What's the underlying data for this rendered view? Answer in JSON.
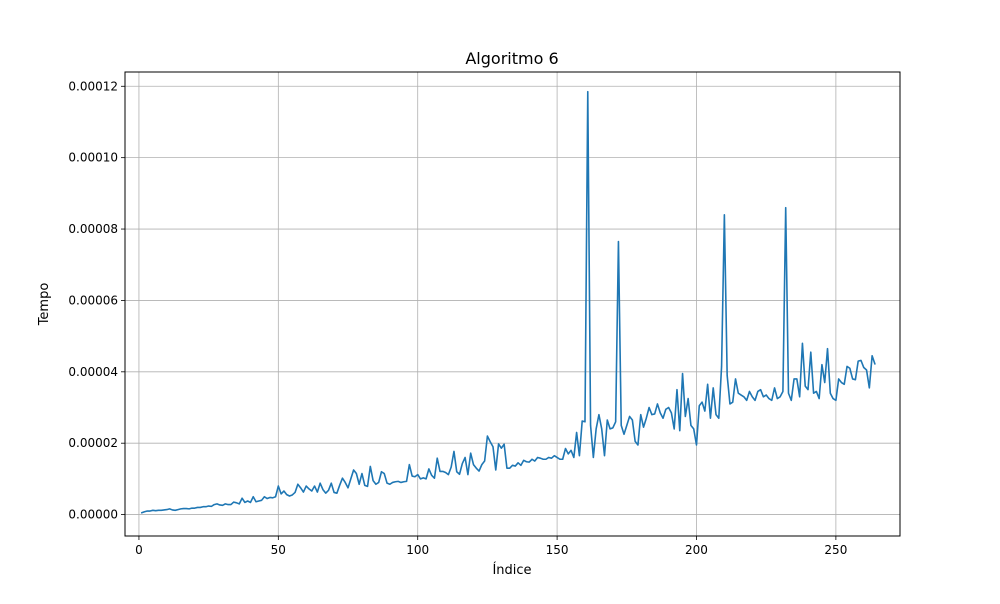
{
  "chart_data": {
    "type": "line",
    "title": "Algoritmo 6",
    "xlabel": "Índice",
    "ylabel": "Tempo",
    "xlim": [
      -5,
      273
    ],
    "ylim": [
      -6e-06,
      0.000124
    ],
    "grid": true,
    "line_color": "#1f77b4",
    "xticks": [
      0,
      50,
      100,
      150,
      200,
      250
    ],
    "xtick_labels": [
      "0",
      "50",
      "100",
      "150",
      "200",
      "250"
    ],
    "yticks": [
      0,
      2e-05,
      4e-05,
      6e-05,
      8e-05,
      0.0001,
      0.00012
    ],
    "ytick_labels": [
      "0.00000",
      "0.00002",
      "0.00004",
      "0.00006",
      "0.00008",
      "0.00010",
      "0.00012"
    ],
    "series": [
      {
        "x_start": 1,
        "x_step": 1,
        "values": [
          5e-07,
          8e-07,
          1e-06,
          1e-06,
          1.2e-06,
          1.1e-06,
          1.2e-06,
          1.2e-06,
          1.3e-06,
          1.4e-06,
          1.6e-06,
          1.3e-06,
          1.2e-06,
          1.4e-06,
          1.6e-06,
          1.7e-06,
          1.7e-06,
          1.6e-06,
          1.8e-06,
          1.8e-06,
          2e-06,
          2e-06,
          2.2e-06,
          2.2e-06,
          2.4e-06,
          2.3e-06,
          2.8e-06,
          3e-06,
          2.7e-06,
          2.6e-06,
          3e-06,
          2.8e-06,
          2.8e-06,
          3.5e-06,
          3.3e-06,
          3e-06,
          4.6e-06,
          3.4e-06,
          3.8e-06,
          3.4e-06,
          5e-06,
          3.6e-06,
          3.8e-06,
          4e-06,
          5e-06,
          4.5e-06,
          4.8e-06,
          4.7e-06,
          5e-06,
          8e-06,
          5.8e-06,
          6.6e-06,
          5.6e-06,
          5.2e-06,
          5.5e-06,
          6.2e-06,
          8.5e-06,
          7.5e-06,
          6.3e-06,
          8e-06,
          7.2e-06,
          6.6e-06,
          8e-06,
          6.3e-06,
          8.8e-06,
          7e-06,
          6e-06,
          6.8e-06,
          8.8e-06,
          6.2e-06,
          6e-06,
          8.2e-06,
          1.02e-05,
          9e-06,
          7.5e-06,
          1e-05,
          1.25e-05,
          1.15e-05,
          8.5e-06,
          1.15e-05,
          8.2e-06,
          7.9e-06,
          1.35e-05,
          9.5e-06,
          8.5e-06,
          9e-06,
          1.2e-05,
          1.15e-05,
          8.8e-06,
          8.5e-06,
          9e-06,
          9.2e-06,
          9.3e-06,
          9e-06,
          9.2e-06,
          9.3e-06,
          1.4e-05,
          1.08e-05,
          1.06e-05,
          1.12e-05,
          1e-05,
          1.03e-05,
          1e-05,
          1.28e-05,
          1.1e-05,
          1.02e-05,
          1.58e-05,
          1.21e-05,
          1.21e-05,
          1.18e-05,
          1.12e-05,
          1.33e-05,
          1.77e-05,
          1.2e-05,
          1.13e-05,
          1.43e-05,
          1.6e-05,
          1.12e-05,
          1.72e-05,
          1.4e-05,
          1.3e-05,
          1.22e-05,
          1.4e-05,
          1.5e-05,
          2.2e-05,
          2.04e-05,
          1.9e-05,
          1.25e-05,
          1.98e-05,
          1.86e-05,
          1.97e-05,
          1.3e-05,
          1.3e-05,
          1.38e-05,
          1.36e-05,
          1.45e-05,
          1.38e-05,
          1.52e-05,
          1.48e-05,
          1.47e-05,
          1.55e-05,
          1.5e-05,
          1.6e-05,
          1.58e-05,
          1.55e-05,
          1.55e-05,
          1.6e-05,
          1.58e-05,
          1.65e-05,
          1.6e-05,
          1.55e-05,
          1.55e-05,
          1.85e-05,
          1.7e-05,
          1.8e-05,
          1.6e-05,
          2.3e-05,
          1.65e-05,
          2.62e-05,
          2.6e-05,
          0.0001185,
          2.5e-05,
          1.6e-05,
          2.4e-05,
          2.8e-05,
          2.4e-05,
          1.65e-05,
          2.65e-05,
          2.4e-05,
          2.43e-05,
          2.6e-05,
          7.65e-05,
          2.5e-05,
          2.25e-05,
          2.5e-05,
          2.75e-05,
          2.65e-05,
          2.05e-05,
          1.95e-05,
          2.8e-05,
          2.45e-05,
          2.7e-05,
          3e-05,
          2.8e-05,
          2.82e-05,
          3.1e-05,
          2.85e-05,
          2.7e-05,
          2.95e-05,
          3e-05,
          2.85e-05,
          2.4e-05,
          3.5e-05,
          2.35e-05,
          3.95e-05,
          2.75e-05,
          3.25e-05,
          2.5e-05,
          2.4e-05,
          1.95e-05,
          3.05e-05,
          3.15e-05,
          2.9e-05,
          3.65e-05,
          2.7e-05,
          3.55e-05,
          2.8e-05,
          2.7e-05,
          4.15e-05,
          8.4e-05,
          3.9e-05,
          3.1e-05,
          3.15e-05,
          3.8e-05,
          3.4e-05,
          3.35e-05,
          3.3e-05,
          3.2e-05,
          3.45e-05,
          3.3e-05,
          3.2e-05,
          3.45e-05,
          3.5e-05,
          3.3e-05,
          3.35e-05,
          3.25e-05,
          3.2e-05,
          3.55e-05,
          3.25e-05,
          3.3e-05,
          3.45e-05,
          8.6e-05,
          3.4e-05,
          3.2e-05,
          3.8e-05,
          3.8e-05,
          3.3e-05,
          4.8e-05,
          3.6e-05,
          3.5e-05,
          4.55e-05,
          3.4e-05,
          3.45e-05,
          3.25e-05,
          4.2e-05,
          3.7e-05,
          4.65e-05,
          3.4e-05,
          3.25e-05,
          3.2e-05,
          3.8e-05,
          3.7e-05,
          3.65e-05,
          4.15e-05,
          4.1e-05,
          3.8e-05,
          3.78e-05,
          4.3e-05,
          4.32e-05,
          4.12e-05,
          4.05e-05,
          3.55e-05,
          4.45e-05,
          4.22e-05
        ]
      }
    ]
  }
}
